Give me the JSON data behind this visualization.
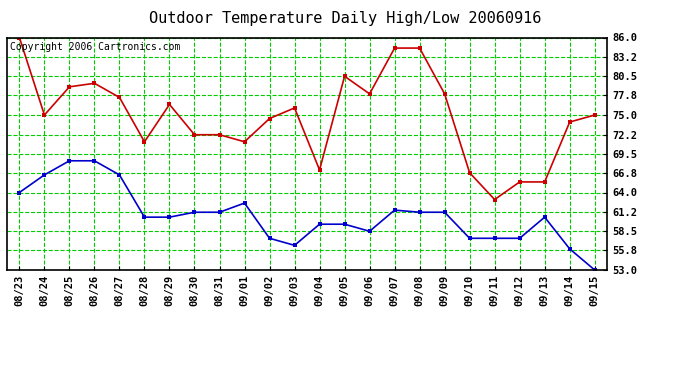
{
  "title": "Outdoor Temperature Daily High/Low 20060916",
  "copyright": "Copyright 2006 Cartronics.com",
  "x_labels": [
    "08/23",
    "08/24",
    "08/25",
    "08/26",
    "08/27",
    "08/28",
    "08/29",
    "08/30",
    "08/31",
    "09/01",
    "09/02",
    "09/03",
    "09/04",
    "09/05",
    "09/06",
    "09/07",
    "09/08",
    "09/09",
    "09/10",
    "09/11",
    "09/12",
    "09/13",
    "09/14",
    "09/15"
  ],
  "high_temps": [
    86.0,
    75.0,
    79.0,
    79.5,
    77.5,
    71.2,
    76.5,
    72.2,
    72.2,
    71.2,
    74.5,
    76.0,
    67.2,
    80.5,
    78.0,
    84.5,
    84.5,
    78.0,
    66.8,
    63.0,
    65.5,
    65.5,
    74.0,
    75.0
  ],
  "low_temps": [
    64.0,
    66.5,
    68.5,
    68.5,
    66.5,
    60.5,
    60.5,
    61.2,
    61.2,
    62.5,
    57.5,
    56.5,
    59.5,
    59.5,
    58.5,
    61.5,
    61.2,
    61.2,
    57.5,
    57.5,
    57.5,
    60.5,
    56.0,
    53.0
  ],
  "high_color": "#cc0000",
  "low_color": "#0000cc",
  "grid_color": "#00cc00",
  "bg_color": "#ffffff",
  "ylim_min": 53.0,
  "ylim_max": 86.0,
  "yticks": [
    53.0,
    55.8,
    58.5,
    61.2,
    64.0,
    66.8,
    69.5,
    72.2,
    75.0,
    77.8,
    80.5,
    83.2,
    86.0
  ],
  "title_fontsize": 11,
  "copyright_fontsize": 7,
  "tick_fontsize": 7.5
}
